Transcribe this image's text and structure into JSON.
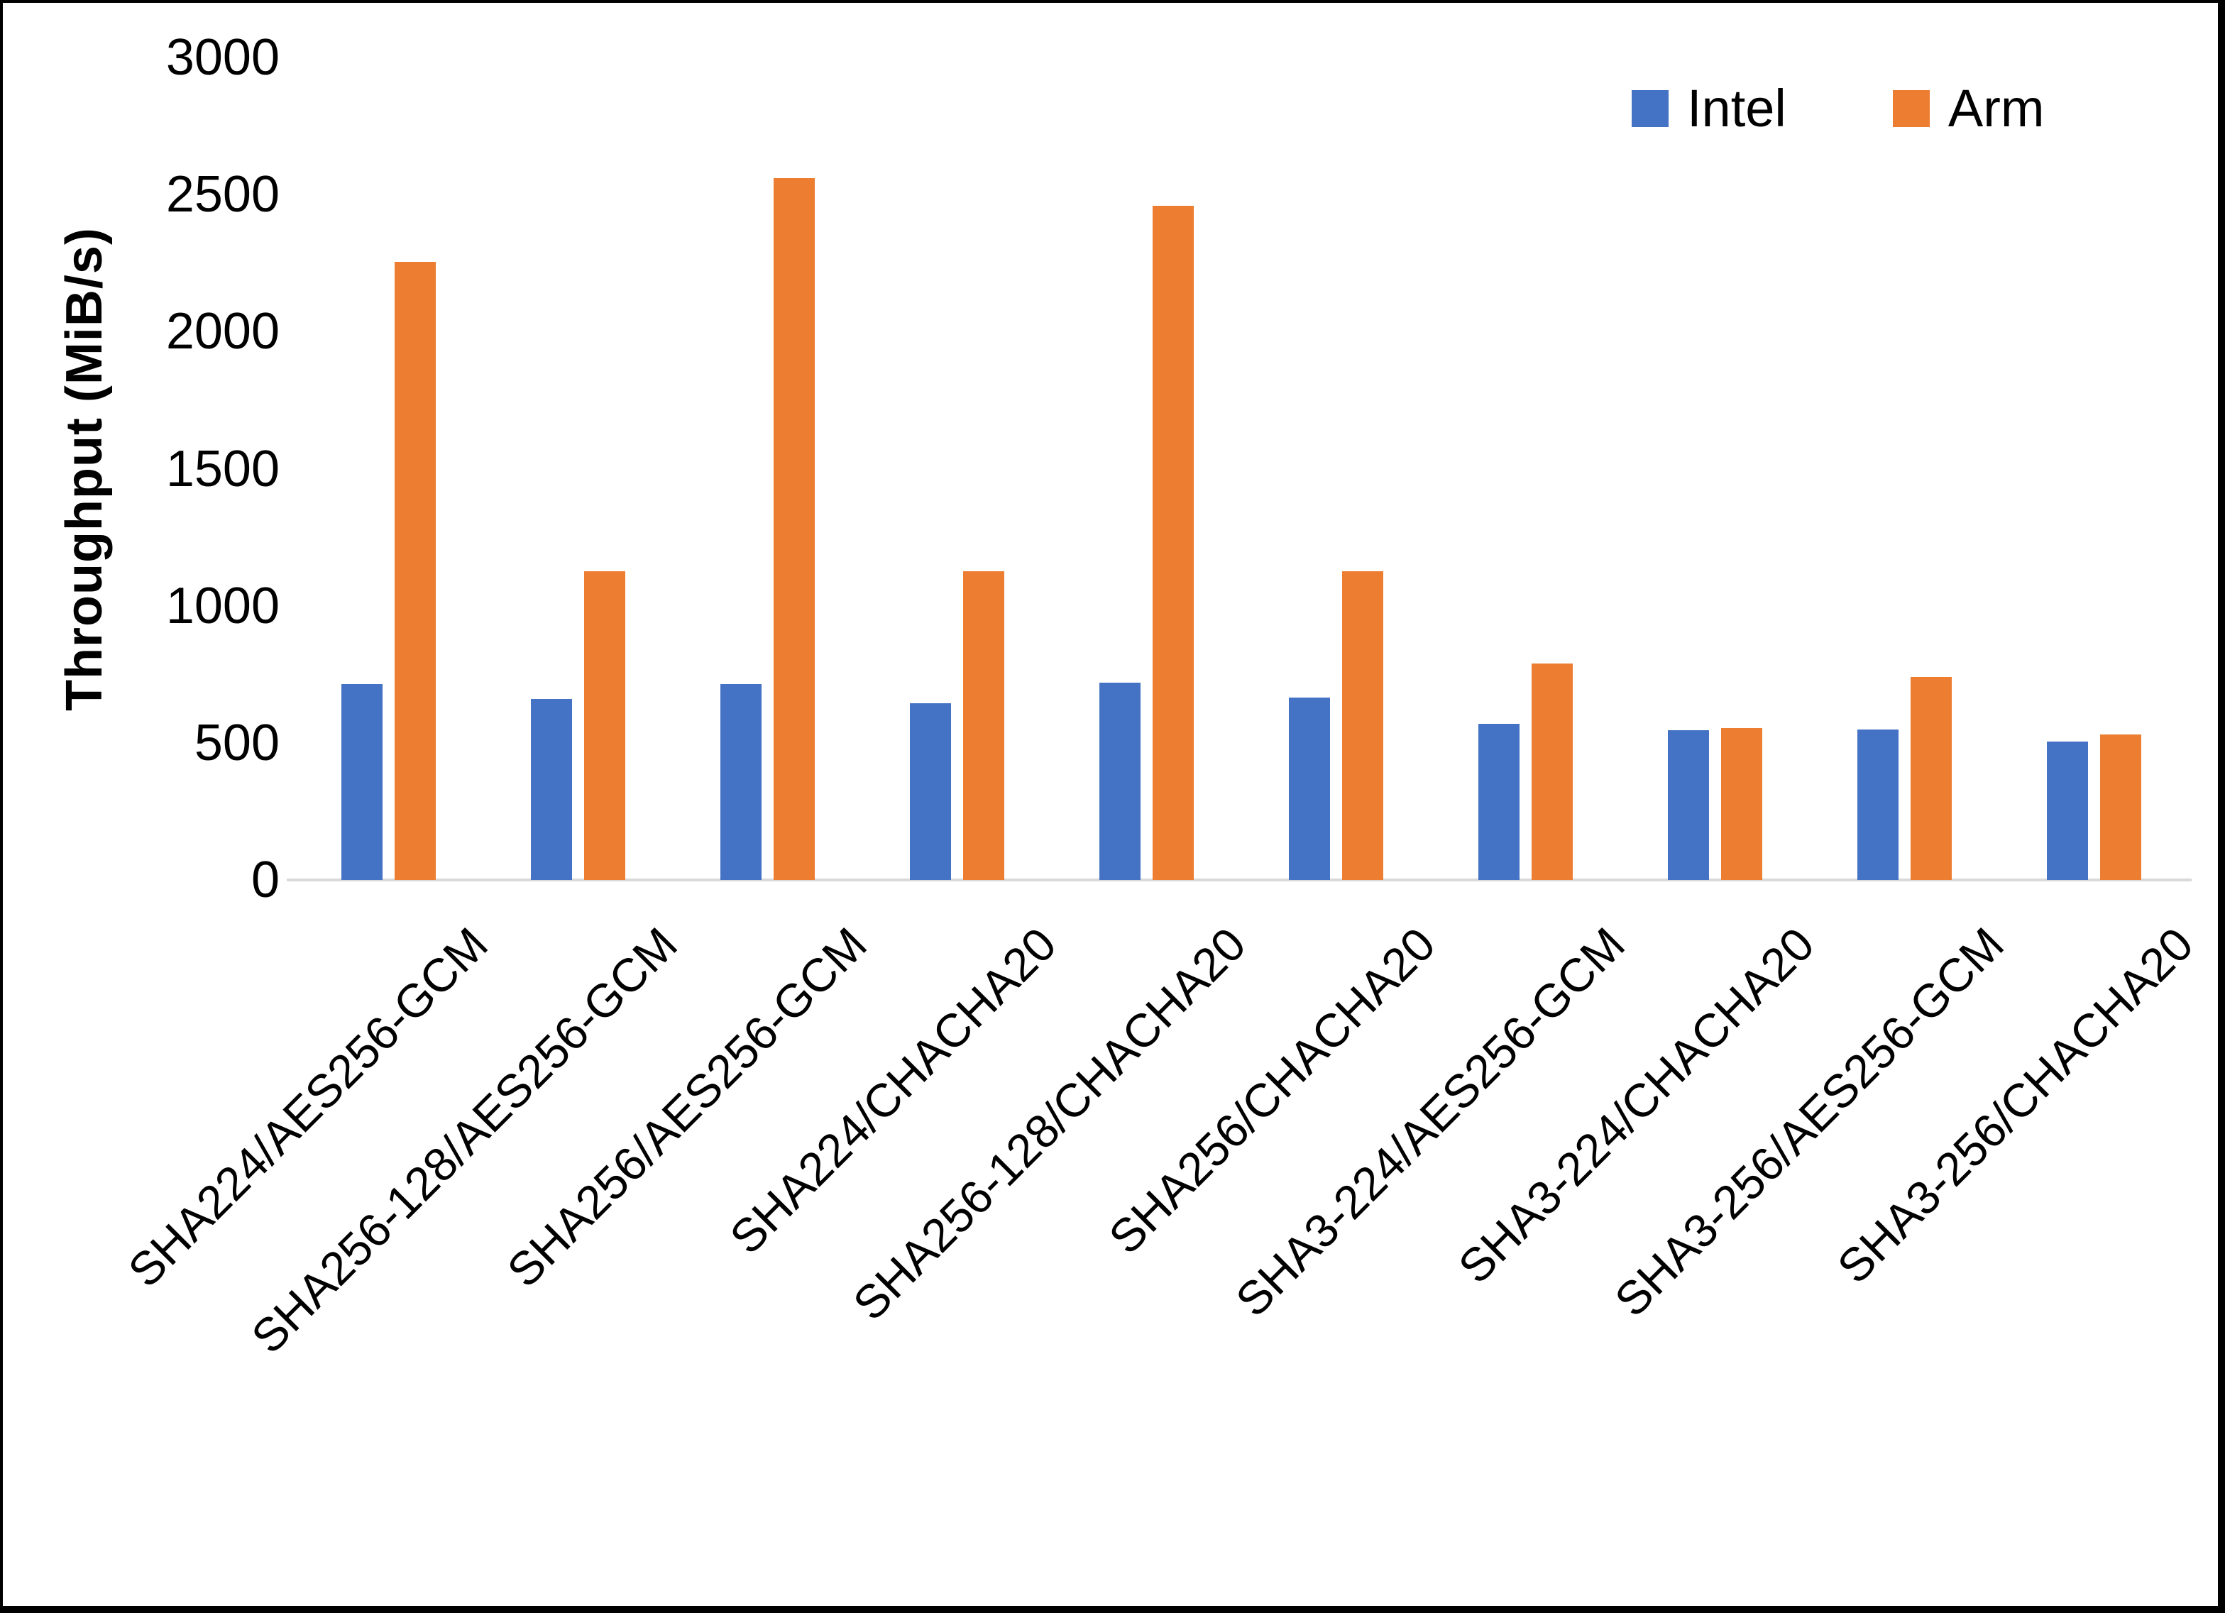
{
  "chart_data": {
    "type": "bar",
    "title": "",
    "xlabel": "",
    "ylabel": "Throughput (MiB/s)",
    "ylim": [
      0,
      3000
    ],
    "yticks": [
      0,
      500,
      1000,
      1500,
      2000,
      2500,
      3000
    ],
    "grid": false,
    "legend_position": "top-right",
    "categories": [
      "SHA224/AES256-GCM",
      "SHA256-128/AES256-GCM",
      "SHA256/AES256-GCM",
      "SHA224/CHACHA20",
      "SHA256-128/CHACHA20",
      "SHA256/CHACHA20",
      "SHA3-224/AES256-GCM",
      "SHA3-224/CHACHA20",
      "SHA3-256/AES256-GCM",
      "SHA3-256/CHACHA20"
    ],
    "series": [
      {
        "name": "Intel",
        "color": "#4472C4",
        "values": [
          715,
          660,
          715,
          645,
          720,
          665,
          570,
          545,
          550,
          505
        ]
      },
      {
        "name": "Arm",
        "color": "#ED7D31",
        "values": [
          2255,
          1125,
          2560,
          1125,
          2460,
          1125,
          790,
          555,
          740,
          530
        ]
      }
    ]
  },
  "colors": {
    "background": "#FFFFFF",
    "frame_border": "#000000",
    "axis_line": "#D9D9D9",
    "text": "#000000",
    "intel": "#4472C4",
    "arm": "#ED7D31"
  }
}
